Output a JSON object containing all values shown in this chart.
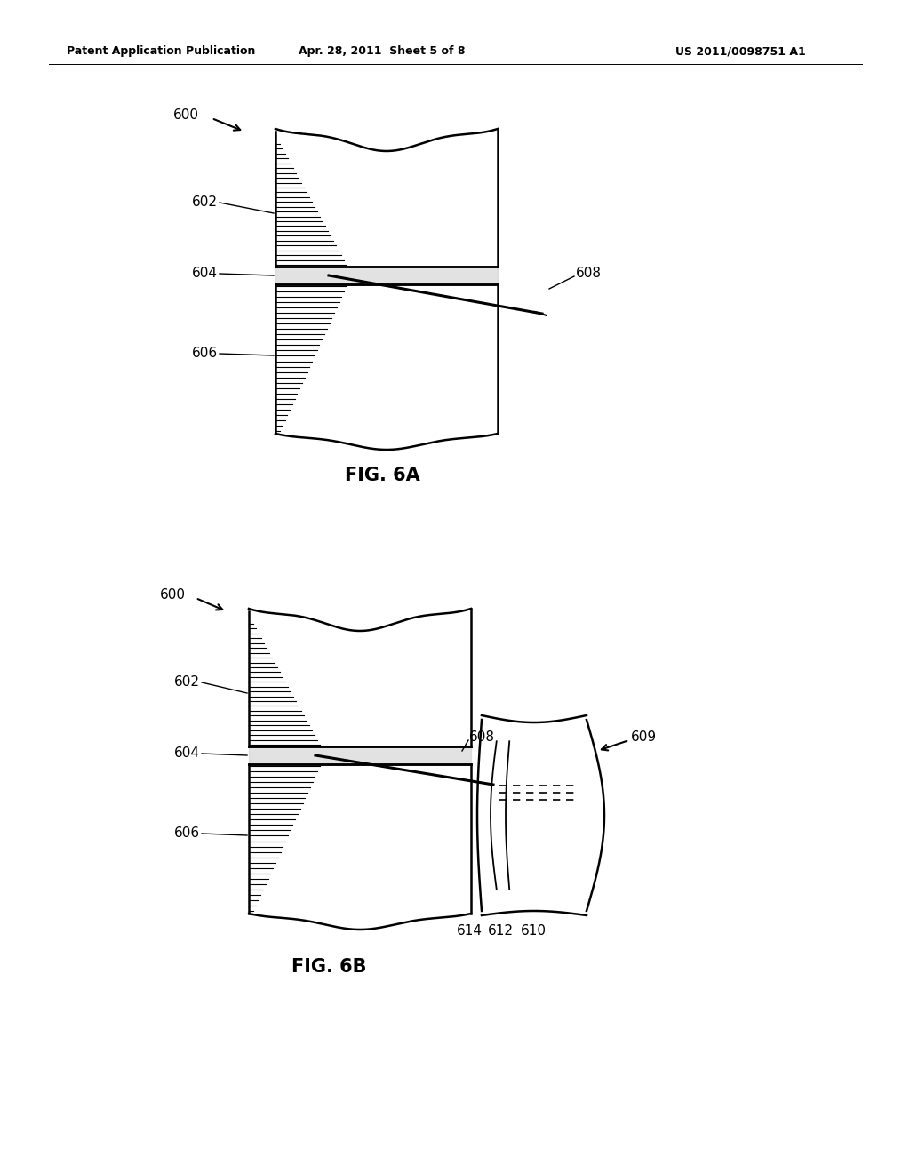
{
  "bg_color": "#ffffff",
  "header_left": "Patent Application Publication",
  "header_center": "Apr. 28, 2011  Sheet 5 of 8",
  "header_right": "US 2011/0098751 A1",
  "fig6a_label": "FIG. 6A",
  "fig6b_label": "FIG. 6B",
  "label_600a": "600",
  "label_602a": "602",
  "label_604a": "604",
  "label_606a": "606",
  "label_608a": "608",
  "label_600b": "600",
  "label_602b": "602",
  "label_604b": "604",
  "label_606b": "606",
  "label_608b": "608",
  "label_609b": "609",
  "label_610b": "610",
  "label_612b": "612",
  "label_614b": "614"
}
